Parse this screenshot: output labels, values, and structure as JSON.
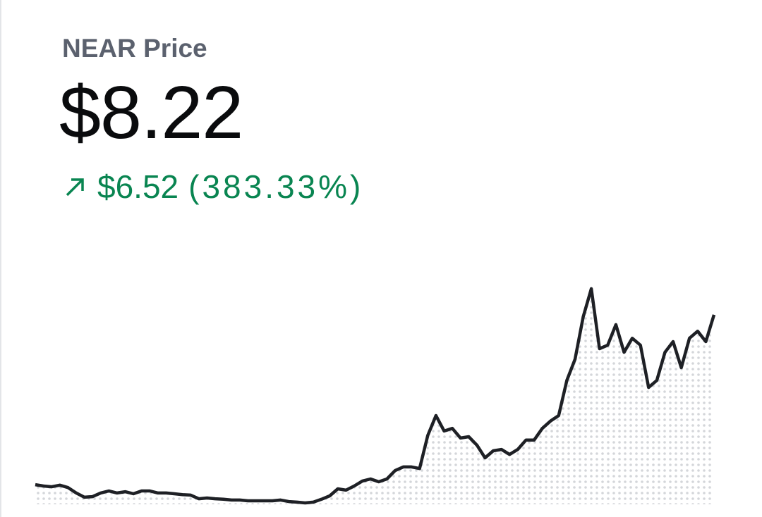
{
  "chart_data": {
    "type": "line",
    "title": "NEAR Price",
    "price": "$8.22",
    "change": "$6.52",
    "change_percent": "(383.33%)",
    "color": "#1e2025",
    "ylim": [
      0.5,
      9.5
    ],
    "values": [
      1.7,
      1.65,
      1.62,
      1.68,
      1.59,
      1.38,
      1.22,
      1.24,
      1.38,
      1.46,
      1.38,
      1.43,
      1.35,
      1.46,
      1.46,
      1.38,
      1.38,
      1.35,
      1.32,
      1.3,
      1.16,
      1.19,
      1.16,
      1.14,
      1.11,
      1.11,
      1.08,
      1.08,
      1.08,
      1.08,
      1.11,
      1.05,
      1.03,
      1.0,
      1.03,
      1.14,
      1.27,
      1.54,
      1.49,
      1.65,
      1.84,
      1.92,
      1.81,
      1.92,
      2.24,
      2.38,
      2.38,
      2.32,
      3.59,
      4.35,
      3.76,
      3.86,
      3.49,
      3.54,
      3.22,
      2.73,
      3.0,
      3.05,
      2.86,
      3.05,
      3.41,
      3.41,
      3.86,
      4.14,
      4.35,
      5.7,
      6.51,
      8.14,
      9.22,
      6.92,
      7.05,
      7.84,
      6.78,
      7.32,
      7.05,
      5.43,
      5.7,
      6.78,
      7.19,
      6.19,
      7.32,
      7.59,
      7.19,
      8.22
    ]
  }
}
